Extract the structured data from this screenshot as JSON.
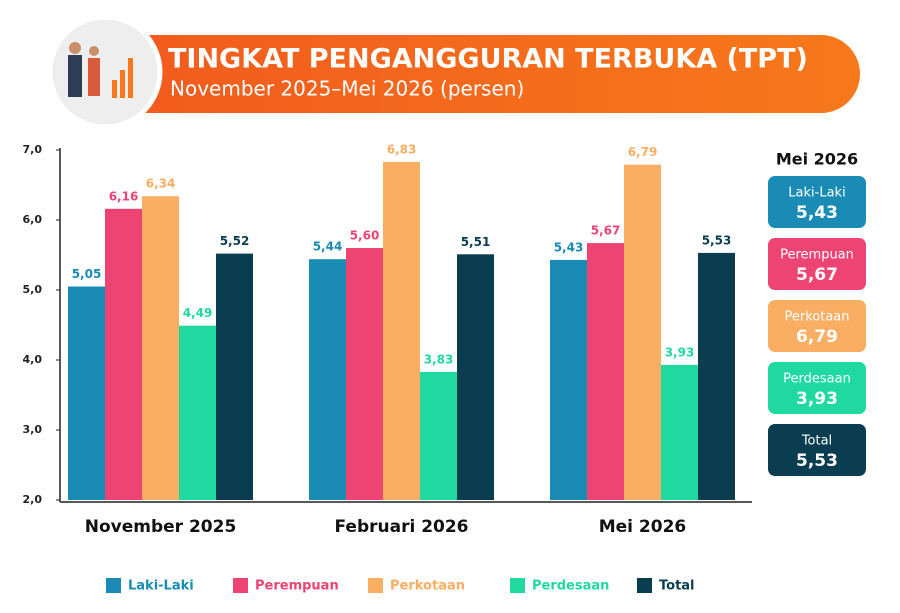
{
  "chart_data": {
    "type": "bar",
    "title": "TINGKAT PENGANGGURAN TERBUKA (TPT)",
    "subtitle": "November 2025–Mei 2026 (persen)",
    "categories": [
      "November 2025",
      "Februari 2026",
      "Mei 2026"
    ],
    "series": [
      {
        "name": "Laki-Laki",
        "color": "#1a8bb5",
        "values": [
          5.05,
          5.44,
          5.43
        ],
        "value_labels": [
          "5,05",
          "5,44",
          "5,43"
        ]
      },
      {
        "name": "Perempuan",
        "color": "#ee4473",
        "values": [
          6.16,
          5.6,
          5.67
        ],
        "value_labels": [
          "6,16",
          "5,60",
          "5,67"
        ]
      },
      {
        "name": "Perkotaan",
        "color": "#f9ae63",
        "values": [
          6.34,
          6.83,
          6.79
        ],
        "value_labels": [
          "6,34",
          "6,83",
          "6,79"
        ]
      },
      {
        "name": "Perdesaan",
        "color": "#1fd9a1",
        "values": [
          4.49,
          3.83,
          3.93
        ],
        "value_labels": [
          "4,49",
          "3,83",
          "3,93"
        ]
      },
      {
        "name": "Total",
        "color": "#0a3d4f",
        "values": [
          5.52,
          5.51,
          5.53
        ],
        "value_labels": [
          "5,52",
          "5,51",
          "5,53"
        ]
      }
    ],
    "ylim": [
      2,
      7
    ],
    "yticks": [
      {
        "value": 2,
        "label": "2,0"
      },
      {
        "value": 3,
        "label": "3,0"
      },
      {
        "value": 4,
        "label": "4,0"
      },
      {
        "value": 5,
        "label": "5,0"
      },
      {
        "value": 6,
        "label": "6,0"
      },
      {
        "value": 7,
        "label": "7,0"
      }
    ],
    "grid": false,
    "legend": "bottom"
  }
}
